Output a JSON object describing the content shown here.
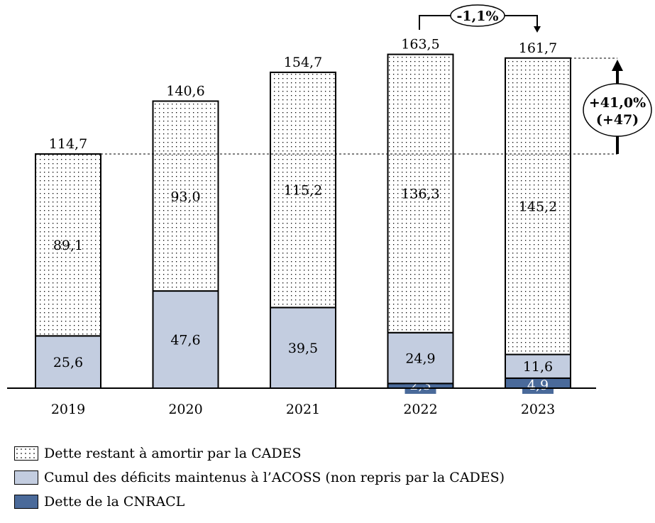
{
  "chart_data": {
    "type": "bar",
    "stacked": true,
    "categories": [
      "2019",
      "2020",
      "2021",
      "2022",
      "2023"
    ],
    "series": [
      {
        "name": "Dette de la CNRACL",
        "values": [
          0,
          0,
          0,
          2.3,
          4.9
        ],
        "color": "#4a6a9a",
        "pattern": "solid"
      },
      {
        "name": "Cumul des déficits maintenus à l’ACOSS (non repris par la CADES)",
        "values": [
          25.6,
          47.6,
          39.5,
          24.9,
          11.6
        ],
        "color": "#c3cde0",
        "pattern": "solid"
      },
      {
        "name": "Dette restant à amortir par la CADES",
        "values": [
          89.1,
          93.0,
          115.2,
          136.3,
          145.2
        ],
        "color": "#ffffff",
        "pattern": "dots"
      }
    ],
    "value_labels": {
      "cnracl": [
        "",
        "",
        "",
        "2,3",
        "4,9"
      ],
      "acoss": [
        "25,6",
        "47,6",
        "39,5",
        "24,9",
        "11,6"
      ],
      "cades": [
        "89,1",
        "93,0",
        "115,2",
        "136,3",
        "145,2"
      ]
    },
    "totals": [
      114.7,
      140.6,
      154.7,
      163.5,
      161.7
    ],
    "total_labels": [
      "114,7",
      "140,6",
      "154,7",
      "163,5",
      "161,7"
    ],
    "annotations": {
      "change_2022_2023": "-1,1%",
      "change_2019_2023_pct": "+41,0%",
      "change_2019_2023_abs": "(+47)"
    },
    "ylim": [
      0,
      170
    ],
    "grid": false,
    "legend_position": "bottom-left"
  }
}
